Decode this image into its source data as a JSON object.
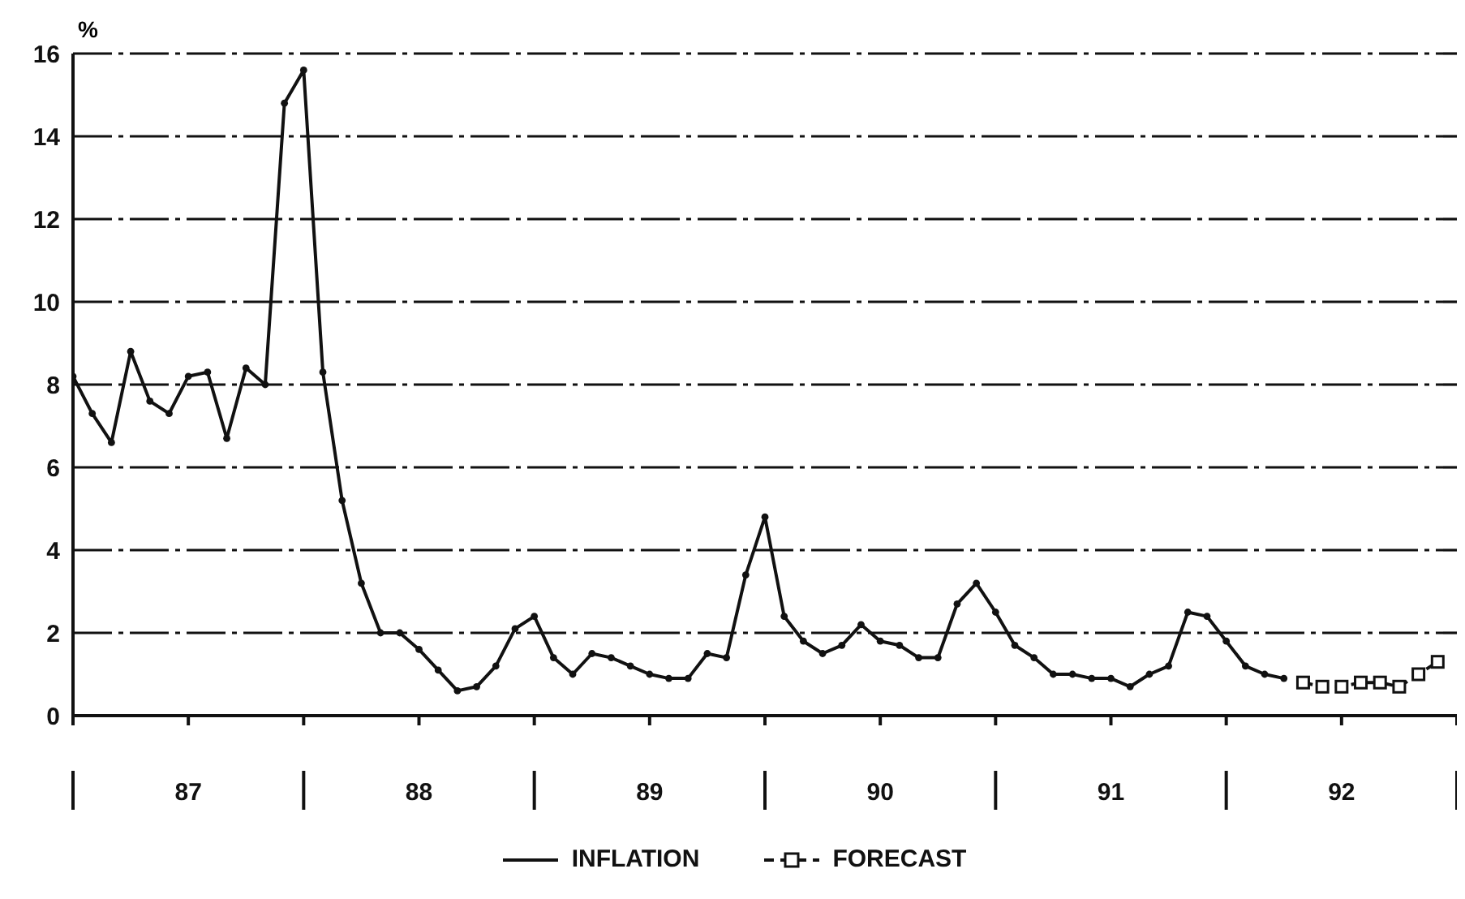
{
  "chart_data": {
    "type": "line",
    "ylabel": "%",
    "ylim": [
      0,
      16
    ],
    "yticks": [
      0,
      2,
      4,
      6,
      8,
      10,
      12,
      14,
      16
    ],
    "grid": "y",
    "legend": "bottom",
    "xlim": [
      "1987-01",
      "1993-01"
    ],
    "xticks": [
      {
        "value": "1987-01",
        "label": null
      },
      {
        "value": "1987-07",
        "label": "87"
      },
      {
        "value": "1988-01",
        "label": null
      },
      {
        "value": "1988-07",
        "label": "88"
      },
      {
        "value": "1989-01",
        "label": null
      },
      {
        "value": "1989-07",
        "label": "89"
      },
      {
        "value": "1990-01",
        "label": null
      },
      {
        "value": "1990-07",
        "label": "90"
      },
      {
        "value": "1991-01",
        "label": null
      },
      {
        "value": "1991-07",
        "label": "91"
      },
      {
        "value": "1992-01",
        "label": null
      },
      {
        "value": "1992-07",
        "label": "92"
      },
      {
        "value": "1993-01",
        "label": null
      }
    ],
    "series": [
      {
        "name": "INFLATION",
        "color": "#111111",
        "line_style": "solid",
        "marker": "circle",
        "x": [
          "1987-01",
          "1987-02",
          "1987-03",
          "1987-04",
          "1987-05",
          "1987-06",
          "1987-07",
          "1987-08",
          "1987-09",
          "1987-10",
          "1987-11",
          "1987-12",
          "1988-01",
          "1988-02",
          "1988-03",
          "1988-04",
          "1988-05",
          "1988-06",
          "1988-07",
          "1988-08",
          "1988-09",
          "1988-10",
          "1988-11",
          "1988-12",
          "1989-01",
          "1989-02",
          "1989-03",
          "1989-04",
          "1989-05",
          "1989-06",
          "1989-07",
          "1989-08",
          "1989-09",
          "1989-10",
          "1989-11",
          "1989-12",
          "1990-01",
          "1990-02",
          "1990-03",
          "1990-04",
          "1990-05",
          "1990-06",
          "1990-07",
          "1990-08",
          "1990-09",
          "1990-10",
          "1990-11",
          "1990-12",
          "1991-01",
          "1991-02",
          "1991-03",
          "1991-04",
          "1991-05",
          "1991-06",
          "1991-07",
          "1991-08",
          "1991-09",
          "1991-10",
          "1991-11",
          "1991-12",
          "1992-01",
          "1992-02",
          "1992-03",
          "1992-04"
        ],
        "values": [
          8.2,
          7.3,
          6.6,
          8.8,
          7.6,
          7.3,
          8.2,
          8.3,
          6.7,
          8.4,
          8.0,
          14.8,
          15.6,
          8.3,
          5.2,
          3.2,
          2.0,
          2.0,
          1.6,
          1.1,
          0.6,
          0.7,
          1.2,
          2.1,
          2.4,
          1.4,
          1.0,
          1.5,
          1.4,
          1.2,
          1.0,
          0.9,
          0.9,
          1.5,
          1.4,
          3.4,
          4.8,
          2.4,
          1.8,
          1.5,
          1.7,
          2.2,
          1.8,
          1.7,
          1.4,
          1.4,
          2.7,
          3.2,
          2.5,
          1.7,
          1.4,
          1.0,
          1.0,
          0.9,
          0.9,
          0.7,
          1.0,
          1.2,
          2.5,
          2.4,
          1.8,
          1.2,
          1.0,
          0.9
        ]
      },
      {
        "name": "FORECAST",
        "color": "#111111",
        "line_style": "dashed",
        "marker": "square",
        "x": [
          "1992-05",
          "1992-06",
          "1992-07",
          "1992-08",
          "1992-09",
          "1992-10",
          "1992-11",
          "1992-12"
        ],
        "values": [
          0.8,
          0.7,
          0.7,
          0.8,
          0.8,
          0.7,
          1.0,
          1.3
        ]
      }
    ]
  }
}
